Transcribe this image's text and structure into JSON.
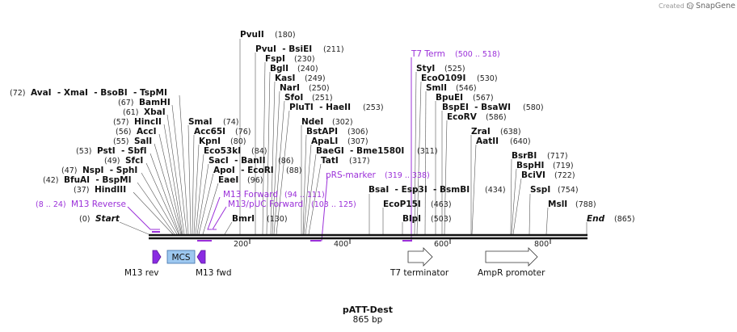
{
  "plasmid": {
    "name": "pATT-Dest",
    "length_label": "865 bp"
  },
  "watermark": {
    "created_by": "Created by",
    "brand": "SnapGene"
  },
  "axis": {
    "ticks": [
      "200",
      "400",
      "600",
      "800"
    ]
  },
  "ends": {
    "start": {
      "name": "Start",
      "pos": "(0)"
    },
    "end": {
      "name": "End",
      "pos": "(865)"
    }
  },
  "sites_left": [
    {
      "label": "AvaI  - XmaI  - BsoBI  - TspMI",
      "pos": "(72)"
    },
    {
      "label": "BamHI",
      "pos": "(67)"
    },
    {
      "label": "XbaI",
      "pos": "(61)"
    },
    {
      "label": "HincII",
      "pos": "(57)"
    },
    {
      "label": "AccI",
      "pos": "(56)"
    },
    {
      "label": "SalI",
      "pos": "(55)"
    },
    {
      "label": "PstI  - SbfI",
      "pos": "(53)"
    },
    {
      "label": "SfcI",
      "pos": "(49)"
    },
    {
      "label": "NspI  - SphI",
      "pos": "(47)"
    },
    {
      "label": "BfuAI  - BspMI",
      "pos": "(42)"
    },
    {
      "label": "HindIII",
      "pos": "(37)"
    }
  ],
  "sites_right": [
    {
      "label": "PvuII",
      "pos": "(180)"
    },
    {
      "label": "PvuI  - BsiEI",
      "pos": "(211)"
    },
    {
      "label": "FspI",
      "pos": "(230)"
    },
    {
      "label": "BglI",
      "pos": "(240)"
    },
    {
      "label": "KasI",
      "pos": "(249)"
    },
    {
      "label": "NarI",
      "pos": "(250)"
    },
    {
      "label": "SfoI",
      "pos": "(251)"
    },
    {
      "label": "PluTI  - HaeII",
      "pos": "(253)"
    },
    {
      "label": "SmaI",
      "pos": "(74)"
    },
    {
      "label": "Acc65I",
      "pos": "(76)"
    },
    {
      "label": "KpnI",
      "pos": "(80)"
    },
    {
      "label": "Eco53kI",
      "pos": "(84)"
    },
    {
      "label": "SacI  - BanII",
      "pos": "(86)"
    },
    {
      "label": "ApoI  - EcoRI",
      "pos": "(88)"
    },
    {
      "label": "EaeI",
      "pos": "(96)"
    },
    {
      "label": "BmrI",
      "pos": "(130)"
    },
    {
      "label": "NdeI",
      "pos": "(302)"
    },
    {
      "label": "BstAPI",
      "pos": "(306)"
    },
    {
      "label": "ApaLI",
      "pos": "(307)"
    },
    {
      "label": "BaeGI  - Bme1580I",
      "pos": "(311)"
    },
    {
      "label": "TatI",
      "pos": "(317)"
    },
    {
      "label": "BsaI  - Esp3I  - BsmBI",
      "pos": "(434)"
    },
    {
      "label": "EcoP15I",
      "pos": "(463)"
    },
    {
      "label": "BlpI",
      "pos": "(503)"
    },
    {
      "label": "StyI",
      "pos": "(525)"
    },
    {
      "label": "EcoO109I",
      "pos": "(530)"
    },
    {
      "label": "SmlI",
      "pos": "(546)"
    },
    {
      "label": "BpuEI",
      "pos": "(567)"
    },
    {
      "label": "BspEI  - BsaWI",
      "pos": "(580)"
    },
    {
      "label": "EcoRV",
      "pos": "(586)"
    },
    {
      "label": "ZraI",
      "pos": "(638)"
    },
    {
      "label": "AatII",
      "pos": "(640)"
    },
    {
      "label": "BsrBI",
      "pos": "(717)"
    },
    {
      "label": "BspHI",
      "pos": "(719)"
    },
    {
      "label": "BciVI",
      "pos": "(722)"
    },
    {
      "label": "SspI",
      "pos": "(754)"
    },
    {
      "label": "MslI",
      "pos": "(788)"
    }
  ],
  "features": [
    {
      "name": "M13 Reverse",
      "range": "(8 .. 24)"
    },
    {
      "name": "M13 Forward",
      "range": "(94 .. 111)"
    },
    {
      "name": "M13/pUC Forward",
      "range": "(103 .. 125)"
    },
    {
      "name": "pRS-marker",
      "range": "(319 .. 338)"
    },
    {
      "name": "T7 Term",
      "range": "(500 .. 518)"
    }
  ],
  "annotations": {
    "m13_rev": "M13 rev",
    "mcs": "MCS",
    "m13_fwd": "M13 fwd",
    "t7_terminator": "T7 terminator",
    "ampr_promoter": "AmpR promoter"
  },
  "colors": {
    "feature": "#9b30d9",
    "mcs_fill": "#9dc8f0",
    "mcs_stroke": "#3b6ea8"
  }
}
